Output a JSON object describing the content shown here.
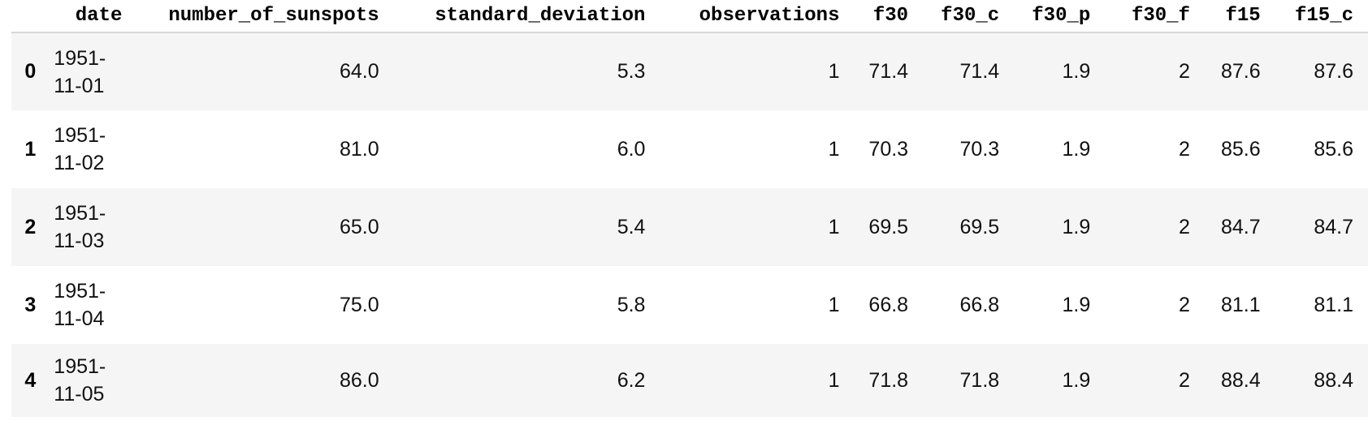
{
  "table": {
    "index_header": "",
    "columns": [
      "date",
      "number_of_sunspots",
      "standard_deviation",
      "observations",
      "f30",
      "f30_c",
      "f30_p",
      "f30_f",
      "f15",
      "f15_c"
    ],
    "rows": [
      {
        "index": "0",
        "date": "1951-\n11-01",
        "number_of_sunspots": "64.0",
        "standard_deviation": "5.3",
        "observations": "1",
        "f30": "71.4",
        "f30_c": "71.4",
        "f30_p": "1.9",
        "f30_f": "2",
        "f15": "87.6",
        "f15_c": "87.6"
      },
      {
        "index": "1",
        "date": "1951-\n11-02",
        "number_of_sunspots": "81.0",
        "standard_deviation": "6.0",
        "observations": "1",
        "f30": "70.3",
        "f30_c": "70.3",
        "f30_p": "1.9",
        "f30_f": "2",
        "f15": "85.6",
        "f15_c": "85.6"
      },
      {
        "index": "2",
        "date": "1951-\n11-03",
        "number_of_sunspots": "65.0",
        "standard_deviation": "5.4",
        "observations": "1",
        "f30": "69.5",
        "f30_c": "69.5",
        "f30_p": "1.9",
        "f30_f": "2",
        "f15": "84.7",
        "f15_c": "84.7"
      },
      {
        "index": "3",
        "date": "1951-\n11-04",
        "number_of_sunspots": "75.0",
        "standard_deviation": "5.8",
        "observations": "1",
        "f30": "66.8",
        "f30_c": "66.8",
        "f30_p": "1.9",
        "f30_f": "2",
        "f15": "81.1",
        "f15_c": "81.1"
      },
      {
        "index": "4",
        "date": "1951-\n11-05",
        "number_of_sunspots": "86.0",
        "standard_deviation": "6.2",
        "observations": "1",
        "f30": "71.8",
        "f30_c": "71.8",
        "f30_p": "1.9",
        "f30_f": "2",
        "f15": "88.4",
        "f15_c": "88.4"
      }
    ]
  },
  "colors": {
    "row_alt_background": "#f5f5f5",
    "header_border": "#d8d8d8"
  }
}
